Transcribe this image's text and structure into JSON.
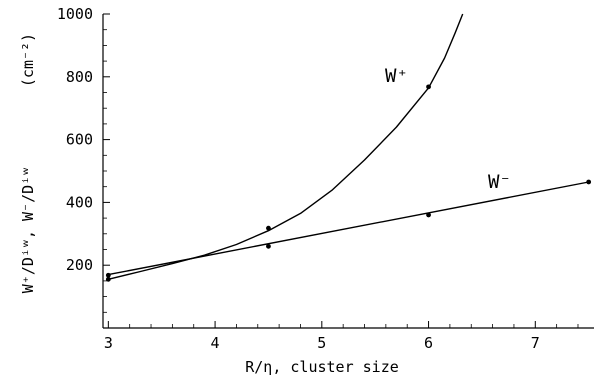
{
  "chart_data": {
    "type": "line",
    "xlabel": "R/η, cluster size",
    "ylabel": "W⁺/Dⁱʷ, W⁻/Dⁱʷ",
    "yunit": "(cm⁻²)",
    "xlim": [
      2.95,
      7.55
    ],
    "ylim": [
      0,
      1000
    ],
    "x_ticks": [
      3,
      4,
      5,
      6,
      7
    ],
    "y_ticks": [
      200,
      400,
      600,
      800,
      1000
    ],
    "grid": false,
    "series": [
      {
        "name": "W⁺",
        "curve": {
          "type": "hyperbolic",
          "x": [
            3,
            3.3,
            3.6,
            3.9,
            4.2,
            4.5,
            4.8,
            5.1,
            5.4,
            5.7,
            6.0,
            6.15,
            6.25,
            6.32
          ],
          "y": [
            155,
            180,
            205,
            232,
            266,
            310,
            365,
            440,
            535,
            640,
            765,
            860,
            940,
            1000
          ]
        },
        "points": [
          {
            "x": 3,
            "y": 155
          },
          {
            "x": 4.5,
            "y": 318
          },
          {
            "x": 6,
            "y": 768
          }
        ]
      },
      {
        "name": "W⁻",
        "curve": {
          "type": "linear",
          "x": [
            3,
            7.5
          ],
          "y": [
            170,
            465
          ]
        },
        "points": [
          {
            "x": 3,
            "y": 168
          },
          {
            "x": 4.5,
            "y": 260
          },
          {
            "x": 6,
            "y": 360
          },
          {
            "x": 7.5,
            "y": 465
          }
        ]
      }
    ]
  }
}
